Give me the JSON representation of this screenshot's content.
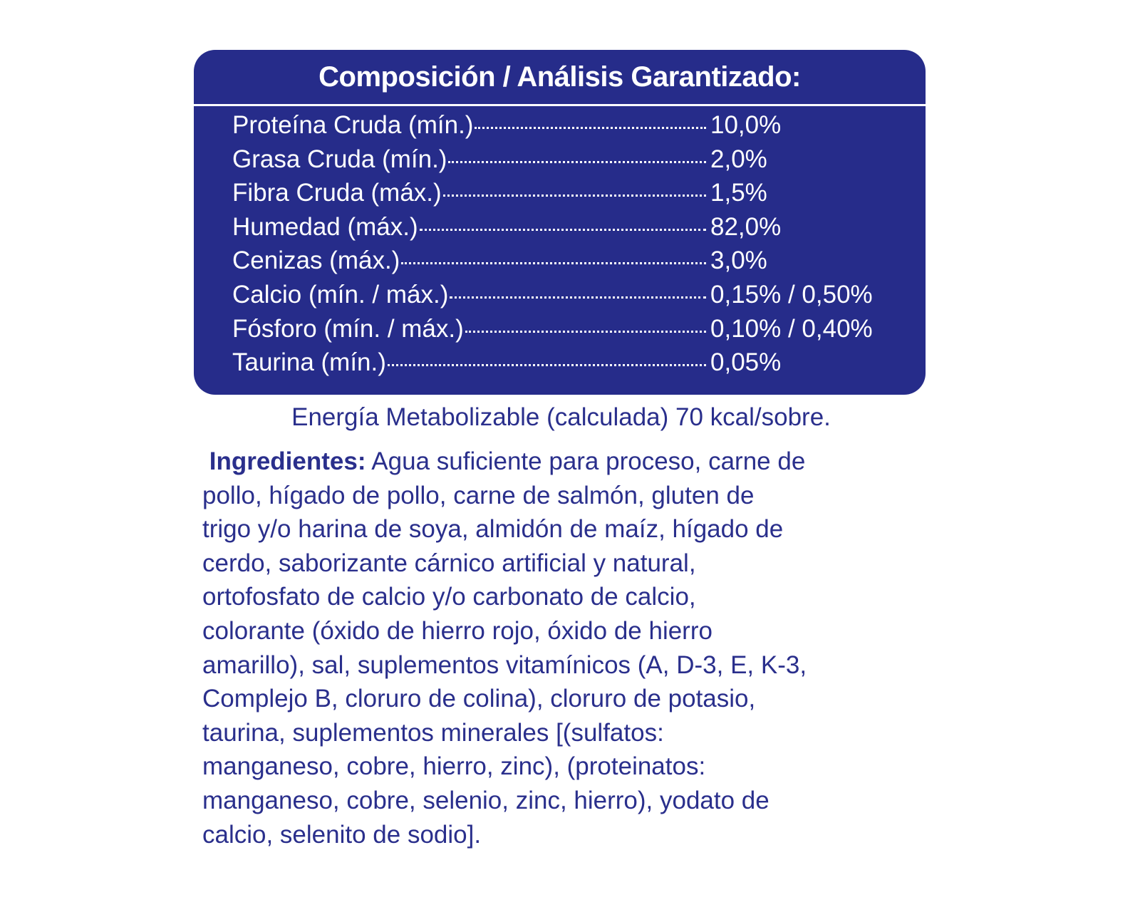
{
  "panel": {
    "title": "Composición / Análisis Garantizado:",
    "rows": [
      {
        "label": "Proteína Cruda (mín.)",
        "value": "10,0%"
      },
      {
        "label": "Grasa Cruda (mín.)",
        "value": "2,0%"
      },
      {
        "label": "Fibra Cruda (máx.)",
        "value": "1,5%"
      },
      {
        "label": "Humedad (máx.)",
        "value": "82,0%"
      },
      {
        "label": "Cenizas (máx.)",
        "value": "3,0%"
      },
      {
        "label": "Calcio (mín. / máx.)",
        "value": "0,15% / 0,50%"
      },
      {
        "label": "Fósforo (mín. / máx.)",
        "value": "0,10% / 0,40%"
      },
      {
        "label": "Taurina (mín.)",
        "value": "0,05%"
      }
    ]
  },
  "energy": "Energía Metabolizable (calculada) 70 kcal/sobre.",
  "ingredients": {
    "label": "Ingredientes:",
    "lines": [
      "Agua suficiente para proceso, carne de",
      "pollo, hígado de pollo, carne de salmón, gluten de",
      "trigo y/o harina de soya, almidón de maíz, hígado de",
      "cerdo, saborizante cárnico artificial y natural,",
      "ortofosfato de calcio y/o carbonato de calcio,",
      "colorante (óxido de hierro rojo, óxido de hierro",
      "amarillo), sal, suplementos vitamínicos (A, D-3, E, K-3,",
      "Complejo B, cloruro de colina), cloruro de potasio,",
      "taurina, suplementos minerales [(sulfatos:",
      "manganeso, cobre, hierro, zinc), (proteinatos:",
      "manganeso, cobre, selenio, zinc, hierro), yodato de",
      "calcio, selenito de sodio]."
    ]
  },
  "colors": {
    "brand_blue": "#262c8a",
    "text_blue": "#2a2f8c"
  }
}
